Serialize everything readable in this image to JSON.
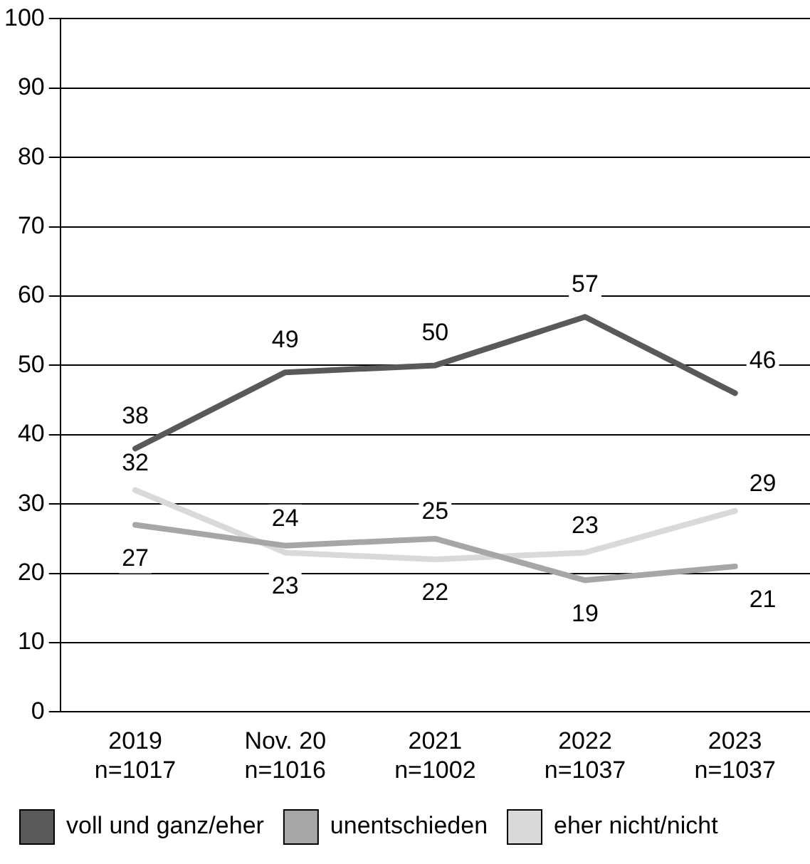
{
  "chart_data": {
    "type": "line",
    "categories": [
      "2019\nn=1017",
      "Nov. 20\nn=1016",
      "2021\nn=1002",
      "2022\nn=1037",
      "2023\nn=1037"
    ],
    "series": [
      {
        "name": "voll und ganz/eher",
        "color": "#595959",
        "values": [
          38,
          49,
          50,
          57,
          46
        ]
      },
      {
        "name": "unentschieden",
        "color": "#a6a6a6",
        "values": [
          27,
          24,
          25,
          19,
          21
        ]
      },
      {
        "name": "eher nicht/nicht",
        "color": "#d9d9d9",
        "values": [
          32,
          23,
          22,
          23,
          29
        ]
      }
    ],
    "ylim": [
      0,
      100
    ],
    "yticks": [
      0,
      10,
      20,
      30,
      40,
      50,
      60,
      70,
      80,
      90,
      100
    ],
    "grid": "y",
    "legend": "bottom",
    "marker": "none",
    "line_style": "solid",
    "data_labels": true
  }
}
